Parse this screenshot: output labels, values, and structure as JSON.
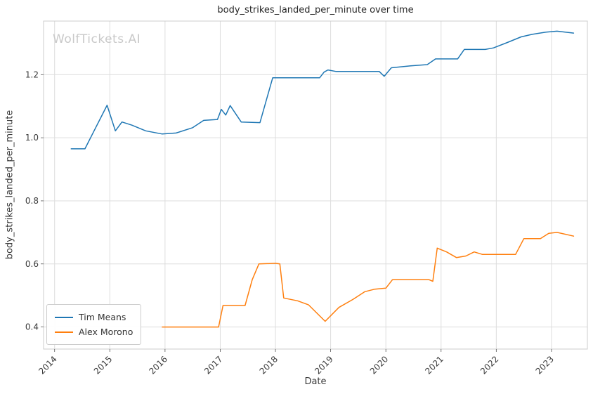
{
  "watermark": "WolfTickets.AI",
  "chart_data": {
    "type": "line",
    "title": "body_strikes_landed_per_minute over time",
    "xlabel": "Date",
    "ylabel": "body_strikes_landed_per_minute",
    "xlim": [
      2013.8,
      2023.65
    ],
    "ylim": [
      0.33,
      1.37
    ],
    "x_ticks": [
      2014,
      2015,
      2016,
      2017,
      2018,
      2019,
      2020,
      2021,
      2022,
      2023
    ],
    "y_ticks": [
      0.4,
      0.6,
      0.8,
      1.0,
      1.2
    ],
    "grid": true,
    "legend_position": "lower left",
    "colors": {
      "grid": "#dddddd",
      "border": "#cccccc",
      "tick": "#555555",
      "tick_label": "#3a3a3a"
    },
    "series": [
      {
        "name": "Tim Means",
        "color": "#1f77b4",
        "points": [
          [
            2014.3,
            0.965
          ],
          [
            2014.55,
            0.965
          ],
          [
            2014.95,
            1.103
          ],
          [
            2015.1,
            1.022
          ],
          [
            2015.22,
            1.05
          ],
          [
            2015.4,
            1.04
          ],
          [
            2015.65,
            1.022
          ],
          [
            2015.95,
            1.012
          ],
          [
            2016.2,
            1.015
          ],
          [
            2016.5,
            1.032
          ],
          [
            2016.7,
            1.055
          ],
          [
            2016.95,
            1.058
          ],
          [
            2017.02,
            1.09
          ],
          [
            2017.1,
            1.072
          ],
          [
            2017.18,
            1.102
          ],
          [
            2017.38,
            1.05
          ],
          [
            2017.72,
            1.048
          ],
          [
            2017.95,
            1.19
          ],
          [
            2018.8,
            1.19
          ],
          [
            2018.88,
            1.208
          ],
          [
            2018.95,
            1.215
          ],
          [
            2019.1,
            1.21
          ],
          [
            2019.88,
            1.21
          ],
          [
            2019.97,
            1.195
          ],
          [
            2020.1,
            1.222
          ],
          [
            2020.45,
            1.228
          ],
          [
            2020.75,
            1.232
          ],
          [
            2020.9,
            1.25
          ],
          [
            2021.3,
            1.25
          ],
          [
            2021.42,
            1.28
          ],
          [
            2021.8,
            1.28
          ],
          [
            2021.95,
            1.285
          ],
          [
            2022.2,
            1.302
          ],
          [
            2022.45,
            1.32
          ],
          [
            2022.65,
            1.328
          ],
          [
            2022.9,
            1.335
          ],
          [
            2023.1,
            1.338
          ],
          [
            2023.4,
            1.332
          ]
        ]
      },
      {
        "name": "Alex Morono",
        "color": "#ff7f0e",
        "points": [
          [
            2015.95,
            0.4
          ],
          [
            2016.97,
            0.4
          ],
          [
            2017.05,
            0.468
          ],
          [
            2017.45,
            0.468
          ],
          [
            2017.58,
            0.55
          ],
          [
            2017.7,
            0.6
          ],
          [
            2018.0,
            0.602
          ],
          [
            2018.08,
            0.6
          ],
          [
            2018.15,
            0.492
          ],
          [
            2018.4,
            0.483
          ],
          [
            2018.6,
            0.47
          ],
          [
            2018.9,
            0.418
          ],
          [
            2019.15,
            0.462
          ],
          [
            2019.4,
            0.487
          ],
          [
            2019.62,
            0.512
          ],
          [
            2019.8,
            0.52
          ],
          [
            2020.0,
            0.523
          ],
          [
            2020.12,
            0.55
          ],
          [
            2020.78,
            0.55
          ],
          [
            2020.85,
            0.545
          ],
          [
            2020.93,
            0.65
          ],
          [
            2021.1,
            0.638
          ],
          [
            2021.28,
            0.62
          ],
          [
            2021.45,
            0.625
          ],
          [
            2021.6,
            0.638
          ],
          [
            2021.75,
            0.63
          ],
          [
            2022.35,
            0.63
          ],
          [
            2022.5,
            0.68
          ],
          [
            2022.8,
            0.68
          ],
          [
            2022.95,
            0.697
          ],
          [
            2023.1,
            0.7
          ],
          [
            2023.4,
            0.688
          ]
        ]
      }
    ]
  }
}
